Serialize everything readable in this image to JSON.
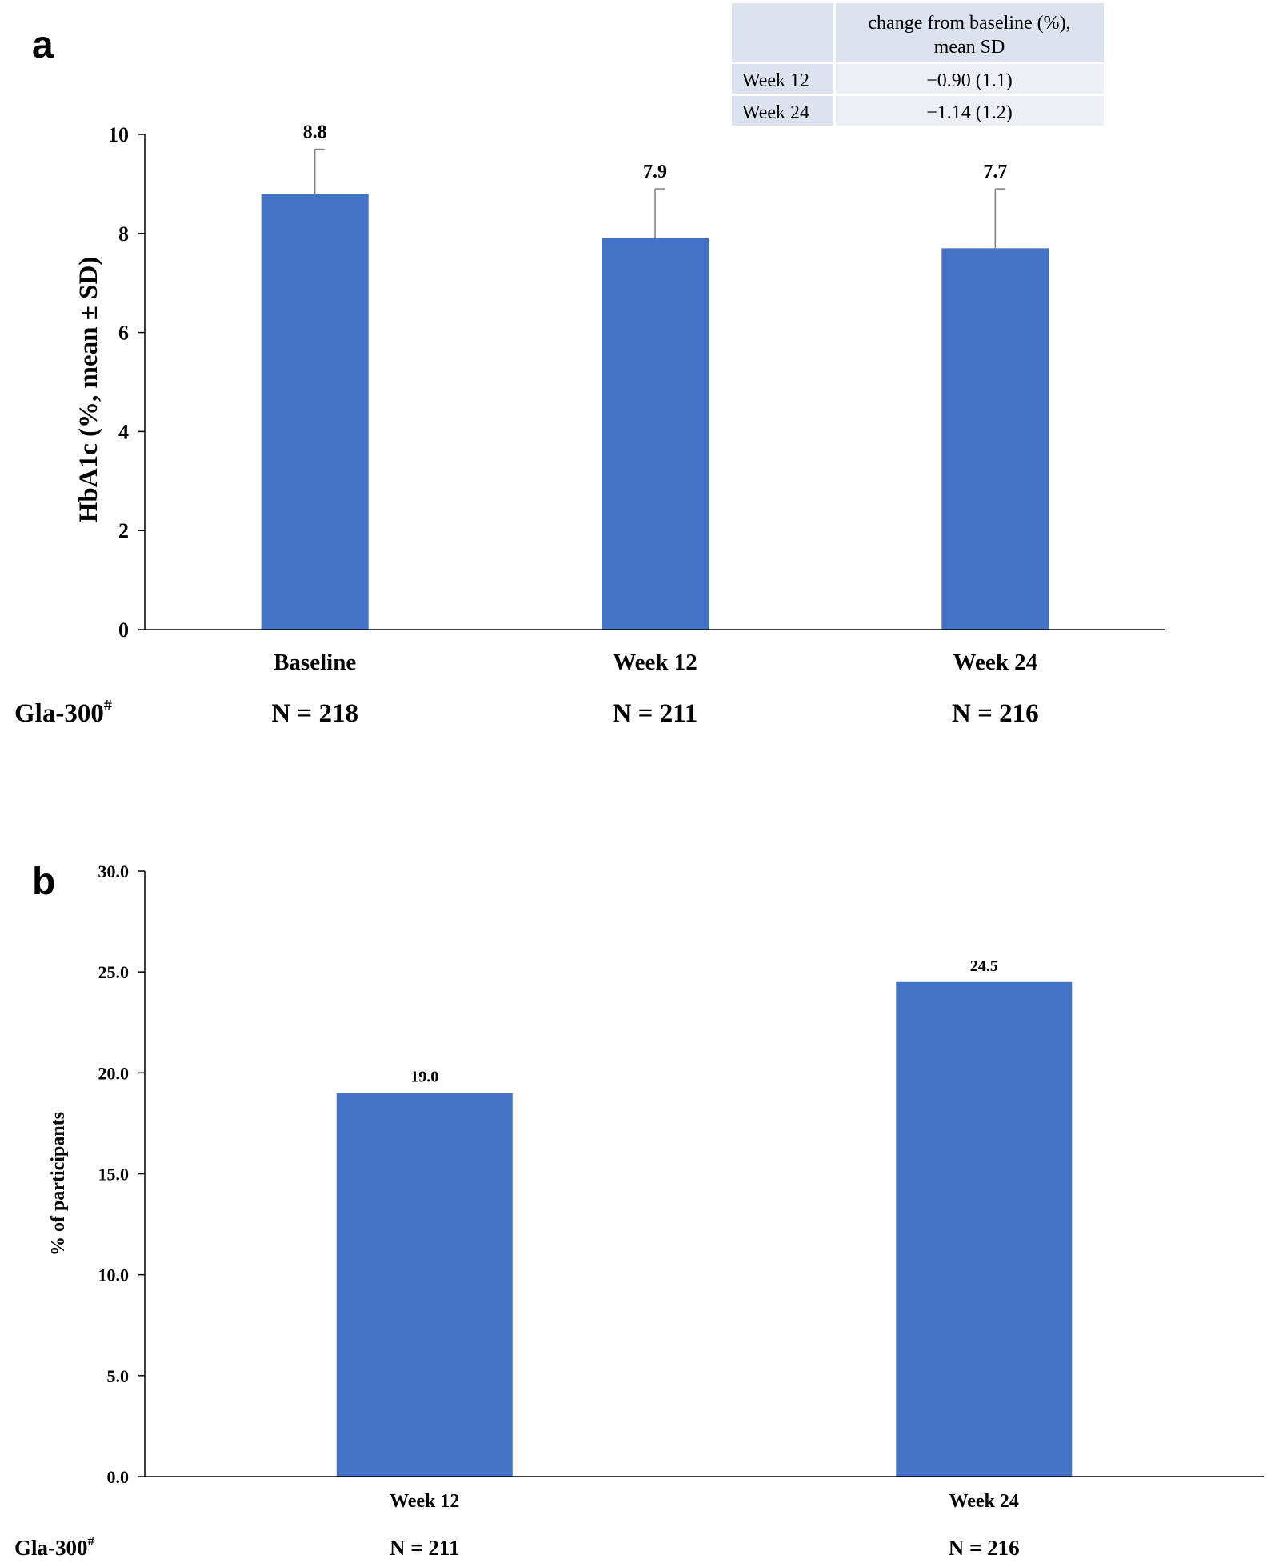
{
  "chart_data": [
    {
      "panel": "a",
      "type": "bar",
      "categories": [
        "Baseline",
        "Week 12",
        "Week 24"
      ],
      "values": [
        8.8,
        7.9,
        7.7
      ],
      "value_labels": [
        "8.8",
        "7.9",
        "7.7"
      ],
      "error_sd": [
        0.9,
        1.0,
        1.2
      ],
      "ylabel": "HbA1c (%, mean ± SD)",
      "xlabel": "",
      "ylim": [
        0,
        10
      ],
      "yticks": [
        "0",
        "2",
        "4",
        "6",
        "8",
        "10"
      ],
      "bar_color": "#4472c4",
      "group_label": "Gla-300",
      "group_label_sup": "#",
      "n_labels": [
        "N = 218",
        "N = 211",
        "N = 216"
      ],
      "inset_table": {
        "header": [
          "",
          "change from baseline (%),",
          "mean SD"
        ],
        "rows": [
          {
            "label": "Week 12",
            "value": "−0.90 (1.1)"
          },
          {
            "label": "Week 24",
            "value": "−1.14 (1.2)"
          }
        ]
      }
    },
    {
      "panel": "b",
      "type": "bar",
      "categories": [
        "Week 12",
        "Week 24"
      ],
      "values": [
        19.0,
        24.5
      ],
      "value_labels": [
        "19.0",
        "24.5"
      ],
      "ylabel": "% of participants",
      "xlabel": "",
      "ylim": [
        0,
        30
      ],
      "yticks": [
        "0.0",
        "5.0",
        "10.0",
        "15.0",
        "20.0",
        "25.0",
        "30.0"
      ],
      "bar_color": "#4472c4",
      "group_label": "Gla-300",
      "group_label_sup": "#",
      "n_labels": [
        "N = 211",
        "N = 216"
      ]
    }
  ]
}
